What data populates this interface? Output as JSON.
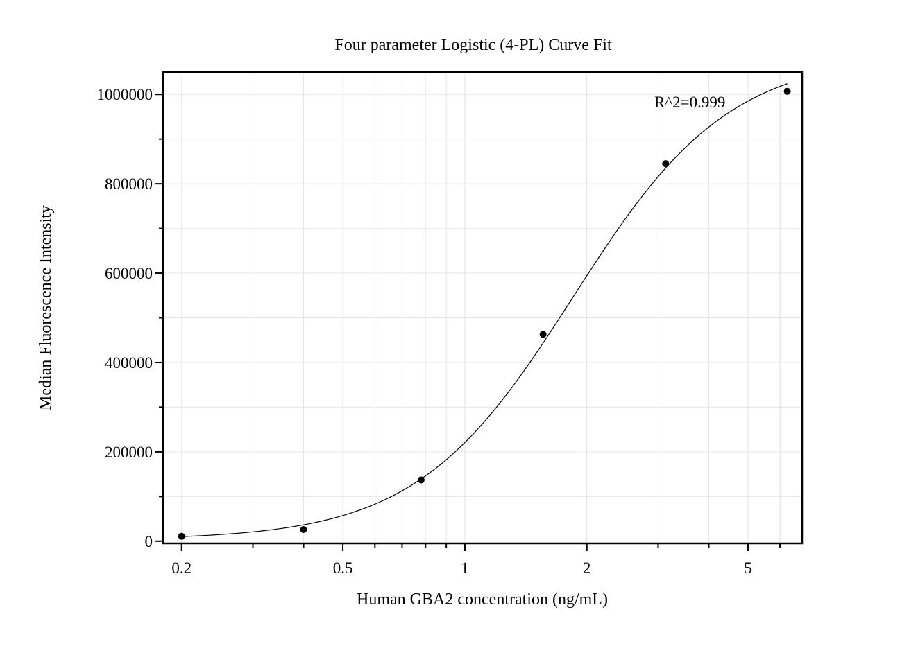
{
  "chart_data": {
    "type": "scatter",
    "title": "Four parameter Logistic (4-PL) Curve Fit",
    "xlabel": "Human GBA2 concentration (ng/mL)",
    "ylabel": "Median Fluorescence Intensity",
    "x_scale": "log",
    "xlim": [
      0.18,
      6.8
    ],
    "ylim": [
      -5000,
      1050000
    ],
    "x_ticks": [
      0.2,
      0.5,
      1,
      2,
      5
    ],
    "x_tick_labels": [
      "0.2",
      "0.5",
      "1",
      "2",
      "5"
    ],
    "y_ticks": [
      0,
      200000,
      400000,
      600000,
      800000,
      1000000
    ],
    "y_tick_labels": [
      "0",
      "200000",
      "400000",
      "600000",
      "800000",
      "1000000"
    ],
    "grid": true,
    "annotation": "R^2=0.999",
    "points": [
      {
        "x": 0.2,
        "y": 11000
      },
      {
        "x": 0.4,
        "y": 26000
      },
      {
        "x": 0.78,
        "y": 137000
      },
      {
        "x": 1.56,
        "y": 463000
      },
      {
        "x": 3.13,
        "y": 845000
      },
      {
        "x": 6.25,
        "y": 1007000
      }
    ],
    "fit": {
      "A": 3000,
      "B": 2.25,
      "C": 1.85,
      "D": 1090000
    }
  }
}
